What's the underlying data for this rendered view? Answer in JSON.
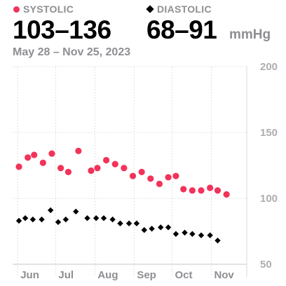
{
  "header": {
    "systolic_label": "SYSTOLIC",
    "diastolic_label": "DIASTOLIC",
    "systolic_range": "103–136",
    "diastolic_range": "68–91",
    "unit": "mmHg",
    "date_range": "May 28 – Nov 25, 2023"
  },
  "colors": {
    "systolic": "#f2335a",
    "diastolic": "#000000"
  },
  "chart_data": {
    "type": "scatter",
    "x_tick_labels": [
      "Jun",
      "Jul",
      "Aug",
      "Sep",
      "Oct",
      "Nov"
    ],
    "x_tick_dates": [
      "2023-06-01",
      "2023-07-01",
      "2023-08-01",
      "2023-09-01",
      "2023-10-01",
      "2023-11-01"
    ],
    "xlim": [
      "2023-05-28",
      "2023-11-29"
    ],
    "y_ticks": [
      50,
      100,
      150,
      200
    ],
    "ylim": [
      50,
      200
    ],
    "grid": true,
    "series": [
      {
        "name": "Systolic",
        "marker": "circle",
        "points": [
          [
            "2023-06-02",
            124
          ],
          [
            "2023-06-09",
            131
          ],
          [
            "2023-06-14",
            133
          ],
          [
            "2023-06-21",
            127
          ],
          [
            "2023-06-28",
            134
          ],
          [
            "2023-07-05",
            123
          ],
          [
            "2023-07-11",
            120
          ],
          [
            "2023-07-19",
            136
          ],
          [
            "2023-07-29",
            121
          ],
          [
            "2023-08-03",
            123
          ],
          [
            "2023-08-10",
            129
          ],
          [
            "2023-08-17",
            126
          ],
          [
            "2023-08-24",
            123
          ],
          [
            "2023-08-31",
            117
          ],
          [
            "2023-09-07",
            120
          ],
          [
            "2023-09-14",
            115
          ],
          [
            "2023-09-21",
            111
          ],
          [
            "2023-09-28",
            116
          ],
          [
            "2023-10-04",
            117
          ],
          [
            "2023-10-10",
            107
          ],
          [
            "2023-10-17",
            106
          ],
          [
            "2023-10-24",
            106
          ],
          [
            "2023-10-31",
            108
          ],
          [
            "2023-11-06",
            106
          ],
          [
            "2023-11-13",
            103
          ]
        ]
      },
      {
        "name": "Diastolic",
        "marker": "diamond",
        "points": [
          [
            "2023-06-02",
            83
          ],
          [
            "2023-06-07",
            85
          ],
          [
            "2023-06-13",
            84
          ],
          [
            "2023-06-20",
            84
          ],
          [
            "2023-06-27",
            91
          ],
          [
            "2023-07-03",
            82
          ],
          [
            "2023-07-09",
            84
          ],
          [
            "2023-07-17",
            90
          ],
          [
            "2023-07-26",
            85
          ],
          [
            "2023-08-02",
            85
          ],
          [
            "2023-08-08",
            85
          ],
          [
            "2023-08-15",
            84
          ],
          [
            "2023-08-21",
            81
          ],
          [
            "2023-08-28",
            81
          ],
          [
            "2023-09-03",
            81
          ],
          [
            "2023-09-09",
            76
          ],
          [
            "2023-09-15",
            77
          ],
          [
            "2023-09-22",
            78
          ],
          [
            "2023-09-28",
            78
          ],
          [
            "2023-10-04",
            73
          ],
          [
            "2023-10-11",
            74
          ],
          [
            "2023-10-17",
            73
          ],
          [
            "2023-10-24",
            72
          ],
          [
            "2023-10-31",
            72
          ],
          [
            "2023-11-06",
            68
          ]
        ]
      }
    ]
  }
}
